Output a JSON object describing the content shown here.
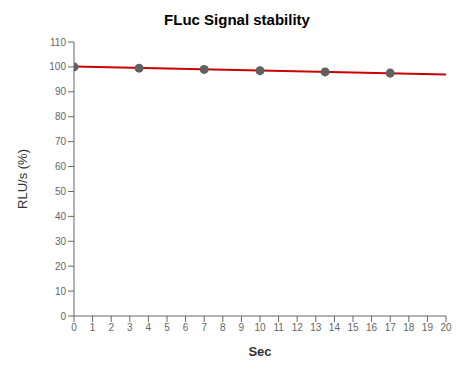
{
  "chart_data": {
    "type": "scatter",
    "title": "FLuc Signal stability",
    "xlabel": "Sec",
    "ylabel": "RLU/s (%)",
    "xlim": [
      0,
      20
    ],
    "ylim": [
      0,
      110
    ],
    "xticks": [
      0,
      1,
      2,
      3,
      4,
      5,
      6,
      7,
      8,
      9,
      10,
      11,
      12,
      13,
      14,
      15,
      16,
      17,
      18,
      19,
      20
    ],
    "yticks": [
      0,
      10,
      20,
      30,
      40,
      50,
      60,
      70,
      80,
      90,
      100,
      110
    ],
    "grid": false,
    "series": [
      {
        "type": "line",
        "color": "#cc0000",
        "x": [
          0,
          20
        ],
        "values": [
          100.2,
          97.0
        ]
      },
      {
        "type": "scatter",
        "marker": "circle",
        "color": "#606060",
        "x": [
          0,
          3.5,
          7,
          10,
          13.5,
          17
        ],
        "values": [
          100.0,
          99.5,
          99.0,
          98.5,
          98.0,
          97.5
        ]
      }
    ]
  }
}
